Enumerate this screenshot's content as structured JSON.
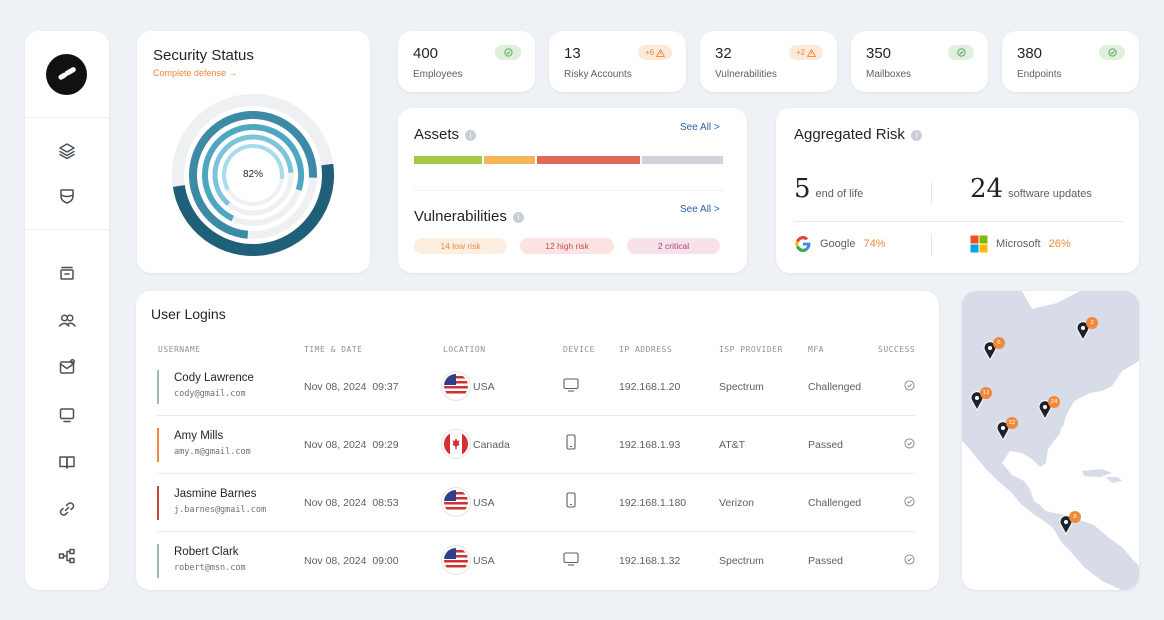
{
  "sidebar": {
    "icons": [
      "layers-icon",
      "shield-icon",
      "archive-icon",
      "users-icon",
      "mail-icon",
      "monitor-icon",
      "book-icon",
      "link-icon",
      "diagram-icon"
    ]
  },
  "security": {
    "title": "Security Status",
    "link": "Complete defense →",
    "percent": "82%"
  },
  "stats": [
    {
      "value": "400",
      "label": "Employees",
      "badge": "ok"
    },
    {
      "value": "13",
      "label": "Risky Accounts",
      "badge": "warn",
      "badge_text": "+6"
    },
    {
      "value": "32",
      "label": "Vulnerabilities",
      "badge": "warn",
      "badge_text": "+2"
    },
    {
      "value": "350",
      "label": "Mailboxes",
      "badge": "ok"
    },
    {
      "value": "380",
      "label": "Endpoints",
      "badge": "ok"
    }
  ],
  "assets": {
    "title": "Assets",
    "see_all": "See All >",
    "bar_colors": [
      "#a6c748",
      "#f6b55a",
      "#e06a55",
      "#cfd3dc"
    ],
    "vuln_title": "Vulnerabilities",
    "vuln_see_all": "See All >",
    "pills": [
      {
        "text": "14 low risk",
        "bg": "#fdeee0",
        "color": "#e98b48"
      },
      {
        "text": "12 high risk",
        "bg": "#fde4e4",
        "color": "#c94a4a"
      },
      {
        "text": "2 critical",
        "bg": "#f7e1ea",
        "color": "#b0436e"
      }
    ]
  },
  "aggregated": {
    "title": "Aggregated Risk",
    "eol_num": "5",
    "eol_label": "end of life",
    "sw_num": "24",
    "sw_label": "software updates",
    "google_label": "Google",
    "google_pct": "74%",
    "ms_label": "Microsoft",
    "ms_pct": "26%"
  },
  "logins": {
    "title": "User Logins",
    "headers": [
      "USERNAME",
      "TIME & DATE",
      "LOCATION",
      "DEVICE",
      "IP ADDRESS",
      "ISP PROVIDER",
      "MFA",
      "SUCCESS"
    ],
    "rows": [
      {
        "name": "Cody Lawrence",
        "email": "cody@gmail.com",
        "date": "Nov 08, 2024",
        "time": "09:37",
        "location": "USA",
        "device": "desktop",
        "ip": "192.168.1.20",
        "isp": "Spectrum",
        "mfa": "Challenged",
        "bar": "#9fb8b3"
      },
      {
        "name": "Amy Mills",
        "email": "amy.m@gmail.com",
        "date": "Nov 08, 2024",
        "time": "09:29",
        "location": "Canada",
        "device": "mobile",
        "ip": "192.168.1.93",
        "isp": "AT&T",
        "mfa": "Passed",
        "bar": "#f08a3a"
      },
      {
        "name": "Jasmine Barnes",
        "email": "j.barnes@gmail.com",
        "date": "Nov 08, 2024",
        "time": "08:53",
        "location": "USA",
        "device": "mobile",
        "ip": "192.168.1.180",
        "isp": "Verizon",
        "mfa": "Challenged",
        "bar": "#c9463f"
      },
      {
        "name": "Robert Clark",
        "email": "robert@msn.com",
        "date": "Nov 08, 2024",
        "time": "09:00",
        "location": "USA",
        "device": "desktop",
        "ip": "192.168.1.32",
        "isp": "Spectrum",
        "mfa": "Passed",
        "bar": "#9fb8b3"
      }
    ]
  },
  "map": {
    "pins": [
      "6",
      "2",
      "12",
      "24",
      "32",
      "8"
    ]
  }
}
